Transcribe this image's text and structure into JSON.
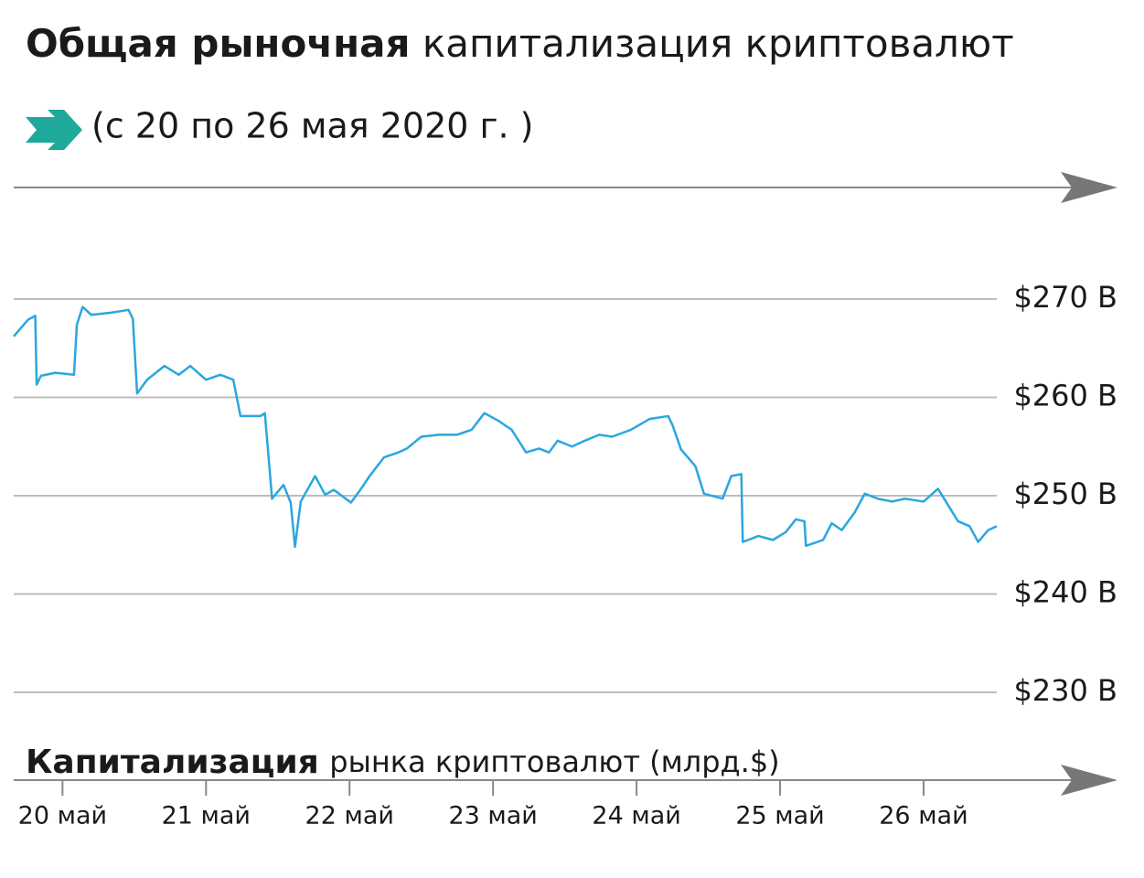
{
  "chart_data": {
    "type": "line",
    "title": [
      "Общая рыночная",
      "капитализация криптовалют"
    ],
    "subtitle": "(с 20 по 26 мая 2020 г. )",
    "x_label": [
      "Капитализация",
      "рынка криптовалют (млрд.$)"
    ],
    "color": "#2aa7df",
    "x": [
      19.66,
      19.76,
      19.81,
      19.82,
      19.85,
      19.95,
      20.08,
      20.1,
      20.14,
      20.2,
      20.33,
      20.46,
      20.49,
      20.52,
      20.59,
      20.71,
      20.81,
      20.89,
      21.0,
      21.1,
      21.19,
      21.24,
      21.38,
      21.41,
      21.46,
      21.54,
      21.59,
      21.62,
      21.66,
      21.76,
      21.83,
      21.89,
      22.01,
      22.08,
      22.14,
      22.24,
      22.34,
      22.4,
      22.5,
      22.62,
      22.75,
      22.85,
      22.94,
      23.04,
      23.13,
      23.23,
      23.32,
      23.39,
      23.45,
      23.55,
      23.64,
      23.74,
      23.83,
      23.96,
      24.09,
      24.22,
      24.25,
      24.31,
      24.41,
      24.47,
      24.6,
      24.66,
      24.73,
      24.74,
      24.85,
      24.95,
      25.04,
      25.11,
      25.17,
      25.18,
      25.3,
      25.36,
      25.43,
      25.52,
      25.59,
      25.68,
      25.78,
      25.87,
      26.0,
      26.1,
      26.16,
      26.24,
      26.32,
      26.38,
      26.45,
      26.51
    ],
    "values": [
      266.2,
      267.9,
      268.3,
      261.3,
      262.2,
      262.5,
      262.3,
      267.4,
      269.2,
      268.4,
      268.6,
      268.9,
      268.0,
      260.4,
      261.8,
      263.2,
      262.3,
      263.2,
      261.8,
      262.3,
      261.8,
      258.1,
      258.1,
      258.4,
      249.7,
      251.1,
      249.3,
      244.8,
      249.4,
      252.0,
      250.1,
      250.6,
      249.3,
      250.7,
      252.0,
      253.9,
      254.4,
      254.8,
      256.0,
      256.2,
      256.2,
      256.7,
      258.4,
      257.6,
      256.7,
      254.4,
      254.8,
      254.4,
      255.6,
      255.0,
      255.6,
      256.2,
      256.0,
      256.7,
      257.8,
      258.1,
      257.2,
      254.7,
      253.0,
      250.2,
      249.7,
      252.0,
      252.2,
      245.3,
      245.9,
      245.5,
      246.3,
      247.6,
      247.4,
      244.9,
      245.5,
      247.2,
      246.5,
      248.3,
      250.2,
      249.7,
      249.4,
      249.7,
      249.4,
      250.7,
      249.3,
      247.4,
      246.9,
      245.3,
      246.5,
      246.9
    ],
    "xlim": [
      19.66,
      26.51
    ],
    "xticks": [
      {
        "value": 20,
        "label": "20 май"
      },
      {
        "value": 21,
        "label": "21 май"
      },
      {
        "value": 22,
        "label": "22 май"
      },
      {
        "value": 23,
        "label": "23 май"
      },
      {
        "value": 24,
        "label": "24 май"
      },
      {
        "value": 25,
        "label": "25 май"
      },
      {
        "value": 26,
        "label": "26 май"
      }
    ],
    "ylim": [
      230,
      270
    ],
    "yticks": [
      {
        "value": 230,
        "label": "$230 B"
      },
      {
        "value": 240,
        "label": "$240 B"
      },
      {
        "value": 250,
        "label": "$250 B"
      },
      {
        "value": 260,
        "label": "$260 B"
      },
      {
        "value": 270,
        "label": "$270 B"
      }
    ],
    "grid": true
  }
}
